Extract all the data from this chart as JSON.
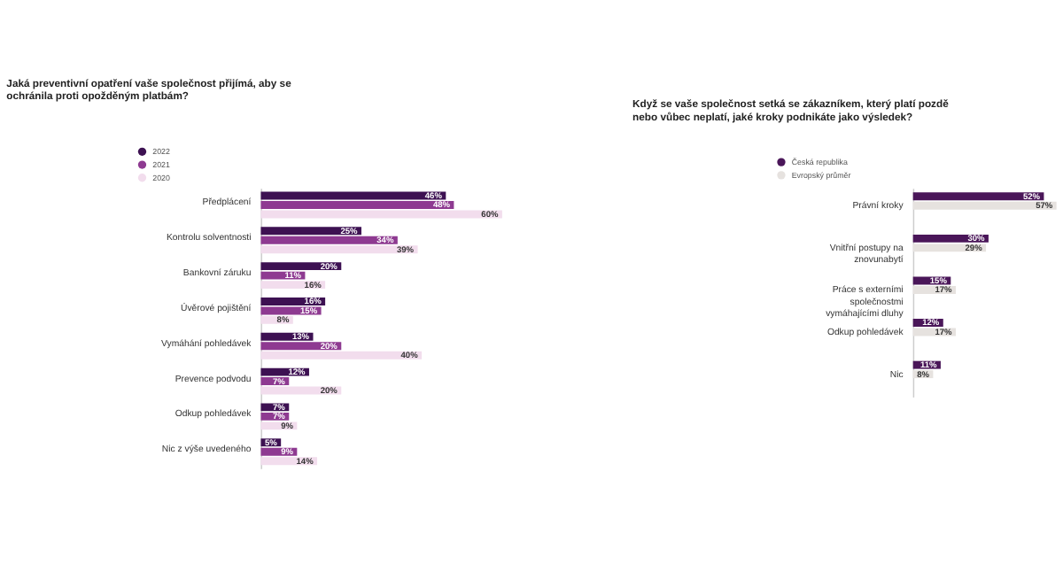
{
  "chart_data": [
    {
      "type": "bar",
      "orientation": "horizontal",
      "title": "Jaká preventivní opatření vaše společnost přijímá, aby se ochránila proti opožděným platbám?",
      "categories": [
        "Předplácení",
        "Kontrolu solventnosti",
        "Bankovní záruku",
        "Úvěrové pojištění",
        "Vymáhání pohledávek",
        "Prevence podvodu",
        "Odkup pohledávek",
        "Nic z výše uvedeného"
      ],
      "series": [
        {
          "name": "2022",
          "color": "#3d1152",
          "values": [
            46,
            25,
            20,
            16,
            13,
            12,
            7,
            5
          ],
          "value_labels": [
            "46%",
            "25%",
            "20%",
            "16%",
            "13%",
            "12%",
            "7%",
            "5%"
          ]
        },
        {
          "name": "2021",
          "color": "#8e3a91",
          "values": [
            48,
            34,
            11,
            15,
            20,
            7,
            7,
            9
          ],
          "value_labels": [
            "48%",
            "34%",
            "11%",
            "15%",
            "20%",
            "7%",
            "7%",
            "9%"
          ]
        },
        {
          "name": "2020",
          "color": "#f2dded",
          "values": [
            60,
            39,
            16,
            8,
            40,
            20,
            9,
            14
          ],
          "value_labels": [
            "60%",
            "39%",
            "16%",
            "8%",
            "40%",
            "20%",
            "9%",
            "14%"
          ]
        }
      ],
      "legend": "top left",
      "tick_labels": "y",
      "grid": false
    },
    {
      "type": "bar",
      "orientation": "horizontal",
      "title": "Když se vaše společnost setká se zákazníkem, který platí pozdě nebo vůbec neplatí, jaké kroky podnikáte jako výsledek?",
      "categories": [
        "Právní kroky",
        "Vnitřní postupy na znovunabytí",
        "Práce s externími společnostmi vymáhajícími dluhy",
        "Odkup pohledávek",
        "Nic"
      ],
      "series": [
        {
          "name": "Česká republika",
          "color": "#4a1659",
          "values": [
            52,
            30,
            15,
            12,
            11
          ],
          "value_labels": [
            "52%",
            "30%",
            "15%",
            "12%",
            "11%"
          ]
        },
        {
          "name": "Evropský průměr",
          "color": "#e6e2df",
          "values": [
            57,
            29,
            17,
            17,
            8
          ],
          "value_labels": [
            "57%",
            "29%",
            "17%",
            "17%",
            "8%"
          ]
        }
      ],
      "legend": "top left",
      "tick_labels": "y",
      "grid": false
    }
  ]
}
